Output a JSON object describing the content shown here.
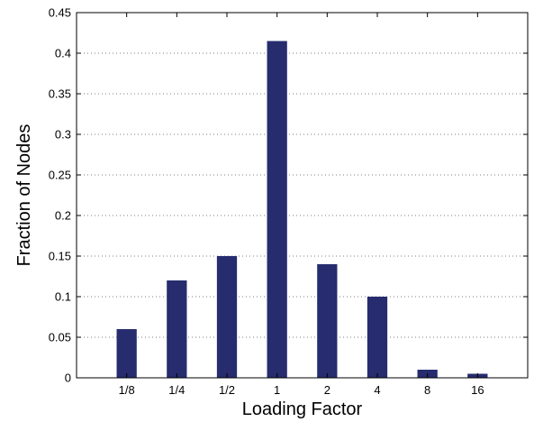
{
  "chart_data": {
    "type": "bar",
    "title": "",
    "xlabel": "Loading Factor",
    "ylabel": "Fraction of Nodes",
    "categories": [
      "1/8",
      "1/4",
      "1/2",
      "1",
      "2",
      "4",
      "8",
      "16"
    ],
    "values": [
      0.06,
      0.12,
      0.15,
      0.415,
      0.14,
      0.1,
      0.01,
      0.005
    ],
    "ylim": [
      0,
      0.45
    ],
    "yticks": [
      0,
      0.05,
      0.1,
      0.15,
      0.2,
      0.25,
      0.3,
      0.35,
      0.4,
      0.45
    ],
    "ytick_labels": [
      "0",
      "0.05",
      "0.1",
      "0.15",
      "0.2",
      "0.25",
      "0.3",
      "0.35",
      "0.4",
      "0.45"
    ],
    "grid": "horizontal-dotted",
    "bar_color": "#262c6e"
  }
}
